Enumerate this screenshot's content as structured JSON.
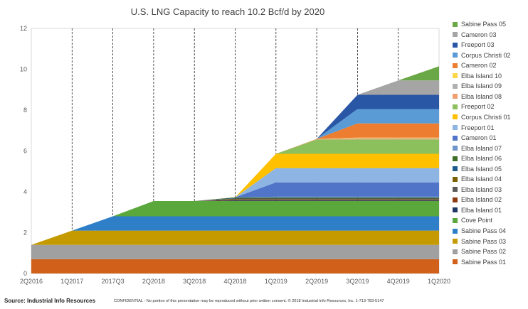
{
  "chart_data": {
    "type": "area",
    "title": "U.S. LNG Capacity to reach 10.2 Bcf/d by 2020",
    "xlabel": "",
    "ylabel": "",
    "categories": [
      "2Q2016",
      "1Q2017",
      "2017Q3",
      "2Q2018",
      "3Q2018",
      "4Q2018",
      "1Q2019",
      "2Q2019",
      "3Q2019",
      "4Q2019",
      "1Q2020"
    ],
    "ylim": [
      0,
      12
    ],
    "yticks": [
      0,
      2,
      4,
      6,
      8,
      10,
      12
    ],
    "grid": "vertical dashed",
    "legend_position": "right",
    "series": [
      {
        "name": "Sabine Pass 01",
        "color": "#d0601a",
        "values": [
          0.7,
          0.7,
          0.7,
          0.7,
          0.7,
          0.7,
          0.7,
          0.7,
          0.7,
          0.7,
          0.7
        ]
      },
      {
        "name": "Sabine Pass 02",
        "color": "#a0a0a0",
        "values": [
          0.7,
          0.7,
          0.7,
          0.7,
          0.7,
          0.7,
          0.7,
          0.7,
          0.7,
          0.7,
          0.7
        ]
      },
      {
        "name": "Sabine Pass 03",
        "color": "#c49a00",
        "values": [
          0,
          0.7,
          0.7,
          0.7,
          0.7,
          0.7,
          0.7,
          0.7,
          0.7,
          0.7,
          0.7
        ]
      },
      {
        "name": "Sabine Pass 04",
        "color": "#2f7fc8",
        "values": [
          0,
          0,
          0.7,
          0.7,
          0.7,
          0.7,
          0.7,
          0.7,
          0.7,
          0.7,
          0.7
        ]
      },
      {
        "name": "Cove Point",
        "color": "#5aa83c",
        "values": [
          0,
          0,
          0,
          0.75,
          0.75,
          0.75,
          0.75,
          0.75,
          0.75,
          0.75,
          0.75
        ]
      },
      {
        "name": "Elba Island 01",
        "color": "#1f3864",
        "values": [
          0,
          0,
          0,
          0,
          0,
          0.03,
          0.03,
          0.03,
          0.03,
          0.03,
          0.03
        ]
      },
      {
        "name": "Elba Island 02",
        "color": "#8a3b12",
        "values": [
          0,
          0,
          0,
          0,
          0,
          0.03,
          0.03,
          0.03,
          0.03,
          0.03,
          0.03
        ]
      },
      {
        "name": "Elba Island 03",
        "color": "#5a5a5a",
        "values": [
          0,
          0,
          0,
          0,
          0,
          0.03,
          0.03,
          0.03,
          0.03,
          0.03,
          0.03
        ]
      },
      {
        "name": "Elba Island 04",
        "color": "#7a6000",
        "values": [
          0,
          0,
          0,
          0,
          0,
          0.03,
          0.03,
          0.03,
          0.03,
          0.03,
          0.03
        ]
      },
      {
        "name": "Elba Island 05",
        "color": "#1e5a8c",
        "values": [
          0,
          0,
          0,
          0,
          0,
          0.03,
          0.03,
          0.03,
          0.03,
          0.03,
          0.03
        ]
      },
      {
        "name": "Elba Island 06",
        "color": "#3e6e28",
        "values": [
          0,
          0,
          0,
          0,
          0,
          0.03,
          0.03,
          0.03,
          0.03,
          0.03,
          0.03
        ]
      },
      {
        "name": "Elba Island 07",
        "color": "#6f94cc",
        "values": [
          0,
          0,
          0,
          0,
          0,
          0,
          0.03,
          0.03,
          0.03,
          0.03,
          0.03
        ]
      },
      {
        "name": "Cameron 01",
        "color": "#4f74c8",
        "values": [
          0,
          0,
          0,
          0,
          0,
          0,
          0.7,
          0.7,
          0.7,
          0.7,
          0.7
        ]
      },
      {
        "name": "Freeport 01",
        "color": "#8db4e2",
        "values": [
          0,
          0,
          0,
          0,
          0,
          0,
          0.7,
          0.7,
          0.7,
          0.7,
          0.7
        ]
      },
      {
        "name": "Corpus Christi 01",
        "color": "#ffc000",
        "values": [
          0,
          0,
          0,
          0,
          0,
          0,
          0.7,
          0.7,
          0.7,
          0.7,
          0.7
        ]
      },
      {
        "name": "Freeport 02",
        "color": "#8cc05c",
        "values": [
          0,
          0,
          0,
          0,
          0,
          0,
          0,
          0.7,
          0.7,
          0.7,
          0.7
        ]
      },
      {
        "name": "Elba Island 08",
        "color": "#f0a070",
        "values": [
          0,
          0,
          0,
          0,
          0,
          0,
          0,
          0.03,
          0.03,
          0.03,
          0.03
        ]
      },
      {
        "name": "Elba Island 09",
        "color": "#b0b0b0",
        "values": [
          0,
          0,
          0,
          0,
          0,
          0,
          0,
          0,
          0.03,
          0.03,
          0.03
        ]
      },
      {
        "name": "Elba Island 10",
        "color": "#ffd54a",
        "values": [
          0,
          0,
          0,
          0,
          0,
          0,
          0,
          0,
          0.03,
          0.03,
          0.03
        ]
      },
      {
        "name": "Cameron 02",
        "color": "#ed7d31",
        "values": [
          0,
          0,
          0,
          0,
          0,
          0,
          0,
          0,
          0.7,
          0.7,
          0.7
        ]
      },
      {
        "name": "Corpus Christi 02",
        "color": "#5b9bd5",
        "values": [
          0,
          0,
          0,
          0,
          0,
          0,
          0,
          0,
          0.7,
          0.7,
          0.7
        ]
      },
      {
        "name": "Freeport 03",
        "color": "#2a56a6",
        "values": [
          0,
          0,
          0,
          0,
          0,
          0,
          0,
          0,
          0.7,
          0.7,
          0.7
        ]
      },
      {
        "name": "Cameron 03",
        "color": "#a5a5a5",
        "values": [
          0,
          0,
          0,
          0,
          0,
          0,
          0,
          0,
          0,
          0.7,
          0.7
        ]
      },
      {
        "name": "Sabine Pass 05",
        "color": "#6aa847",
        "values": [
          0,
          0,
          0,
          0,
          0,
          0,
          0,
          0,
          0,
          0,
          0.7
        ]
      }
    ]
  },
  "footer": {
    "source": "Source: Industrial Info Resources",
    "confidential": "CONFIDENTIAL - No portion of this presentation may be reproduced without prior written consent.  © 2018 Industrial Info Resources, Inc.  1-713-783-5147"
  }
}
